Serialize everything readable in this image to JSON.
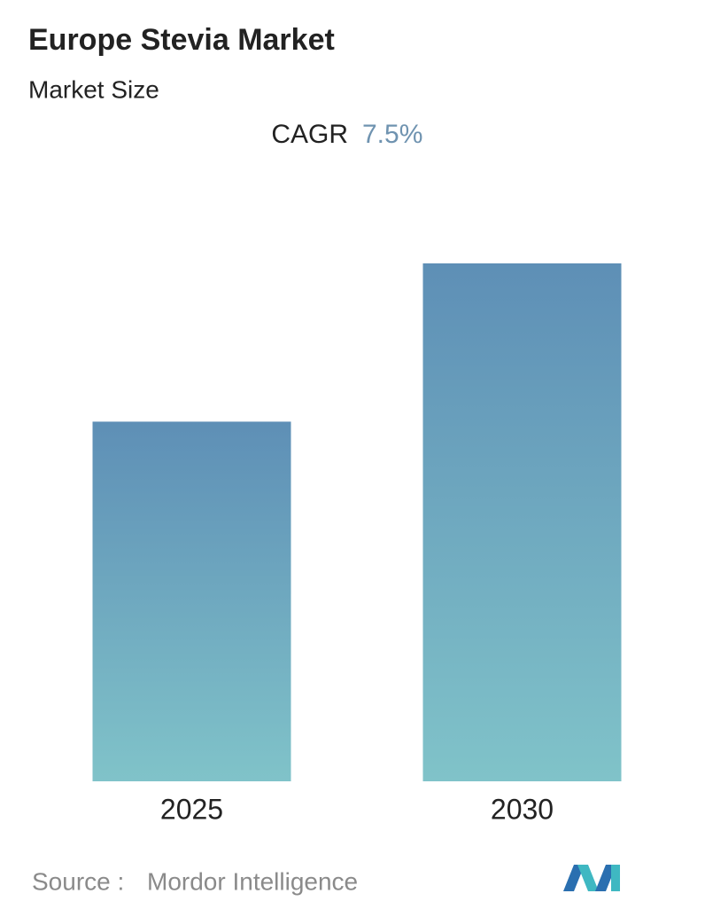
{
  "chart_data": {
    "type": "bar",
    "title": "Europe Stevia Market",
    "subtitle": "Market Size",
    "cagr_label": "CAGR",
    "cagr_value": "7.5%",
    "categories": [
      "2025",
      "2030"
    ],
    "values": [
      100,
      144
    ],
    "ylim": [
      0,
      144
    ],
    "colors": [
      "#5e8fb6",
      "#80c3c9"
    ],
    "source_label": "Source :",
    "source": "Mordor Intelligence"
  }
}
